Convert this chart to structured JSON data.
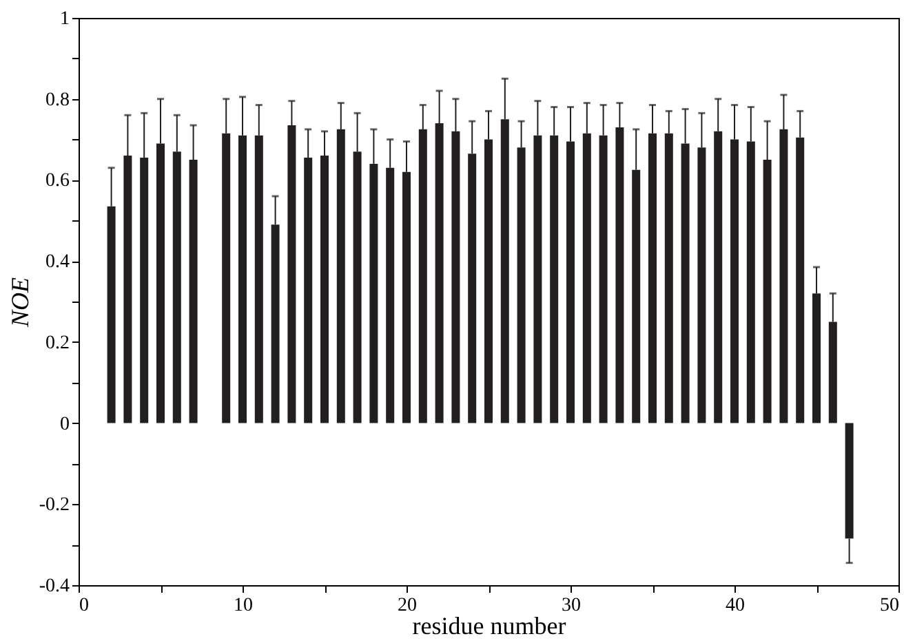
{
  "chart_data": {
    "type": "bar",
    "xlabel": "residue number",
    "ylabel": "NOE",
    "x": [
      2,
      3,
      4,
      5,
      6,
      7,
      9,
      10,
      11,
      12,
      13,
      14,
      15,
      16,
      17,
      18,
      19,
      20,
      21,
      22,
      23,
      24,
      25,
      26,
      27,
      28,
      29,
      30,
      31,
      32,
      33,
      34,
      35,
      36,
      37,
      38,
      39,
      40,
      41,
      42,
      43,
      44,
      45,
      46,
      47
    ],
    "series": [
      {
        "color": "#231f20",
        "values": [
          0.535,
          0.66,
          0.655,
          0.69,
          0.67,
          0.65,
          0.715,
          0.71,
          0.71,
          0.49,
          0.735,
          0.655,
          0.66,
          0.725,
          0.67,
          0.64,
          0.63,
          0.62,
          0.725,
          0.74,
          0.72,
          0.665,
          0.7,
          0.75,
          0.68,
          0.71,
          0.71,
          0.695,
          0.715,
          0.71,
          0.73,
          0.625,
          0.715,
          0.715,
          0.69,
          0.68,
          0.72,
          0.7,
          0.695,
          0.65,
          0.725,
          0.705,
          0.32,
          0.25,
          -0.285
        ],
        "errors": [
          [
            0.535,
            0.63
          ],
          [
            0.66,
            0.76
          ],
          [
            0.655,
            0.765
          ],
          [
            0.69,
            0.8
          ],
          [
            0.67,
            0.76
          ],
          [
            0.65,
            0.735
          ],
          [
            0.715,
            0.8
          ],
          [
            0.71,
            0.805
          ],
          [
            0.71,
            0.785
          ],
          [
            0.49,
            0.56
          ],
          [
            0.735,
            0.795
          ],
          [
            0.655,
            0.725
          ],
          [
            0.66,
            0.72
          ],
          [
            0.725,
            0.79
          ],
          [
            0.67,
            0.765
          ],
          [
            0.64,
            0.725
          ],
          [
            0.63,
            0.7
          ],
          [
            0.62,
            0.695
          ],
          [
            0.725,
            0.785
          ],
          [
            0.74,
            0.82
          ],
          [
            0.72,
            0.8
          ],
          [
            0.665,
            0.745
          ],
          [
            0.7,
            0.77
          ],
          [
            0.75,
            0.85
          ],
          [
            0.68,
            0.745
          ],
          [
            0.71,
            0.795
          ],
          [
            0.71,
            0.78
          ],
          [
            0.695,
            0.78
          ],
          [
            0.715,
            0.79
          ],
          [
            0.71,
            0.785
          ],
          [
            0.73,
            0.79
          ],
          [
            0.625,
            0.725
          ],
          [
            0.715,
            0.785
          ],
          [
            0.715,
            0.77
          ],
          [
            0.69,
            0.775
          ],
          [
            0.68,
            0.765
          ],
          [
            0.72,
            0.8
          ],
          [
            0.7,
            0.785
          ],
          [
            0.695,
            0.78
          ],
          [
            0.65,
            0.745
          ],
          [
            0.725,
            0.81
          ],
          [
            0.705,
            0.77
          ],
          [
            0.32,
            0.385
          ],
          [
            0.25,
            0.32
          ],
          [
            -0.345,
            -0.285
          ]
        ]
      }
    ],
    "xlim": [
      0,
      50
    ],
    "xticks": [
      0,
      {
        "value": 5,
        "label": null
      },
      10,
      {
        "value": 15,
        "label": null
      },
      20,
      {
        "value": 25,
        "label": null
      },
      30,
      {
        "value": 35,
        "label": null
      },
      40,
      {
        "value": 45,
        "label": null
      },
      50
    ],
    "ylim": [
      -0.4,
      1
    ],
    "yticks": [
      -0.4,
      {
        "value": -0.3,
        "label": null
      },
      -0.2,
      {
        "value": -0.1,
        "label": null
      },
      0,
      {
        "value": 0.1,
        "label": null
      },
      0.2,
      {
        "value": 0.3,
        "label": null
      },
      0.4,
      {
        "value": 0.5,
        "label": null
      },
      0.6,
      {
        "value": 0.7,
        "label": null
      },
      0.8,
      {
        "value": 0.9,
        "label": null
      },
      1
    ],
    "grid": false
  }
}
